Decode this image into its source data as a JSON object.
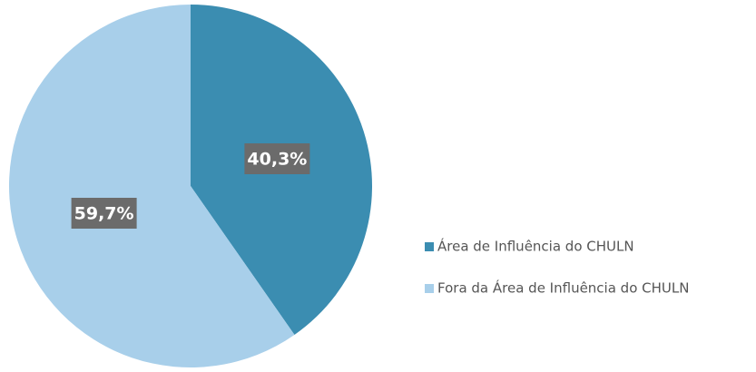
{
  "chart_data": {
    "type": "pie",
    "categories": [
      "Área de Influência do CHULN",
      "Fora da Área de Influência do CHULN"
    ],
    "values": [
      40.3,
      59.7
    ],
    "value_labels": [
      "40,3%",
      "59,7%"
    ],
    "colors": [
      "#3b8db1",
      "#a8cfea"
    ],
    "legend": "right"
  }
}
